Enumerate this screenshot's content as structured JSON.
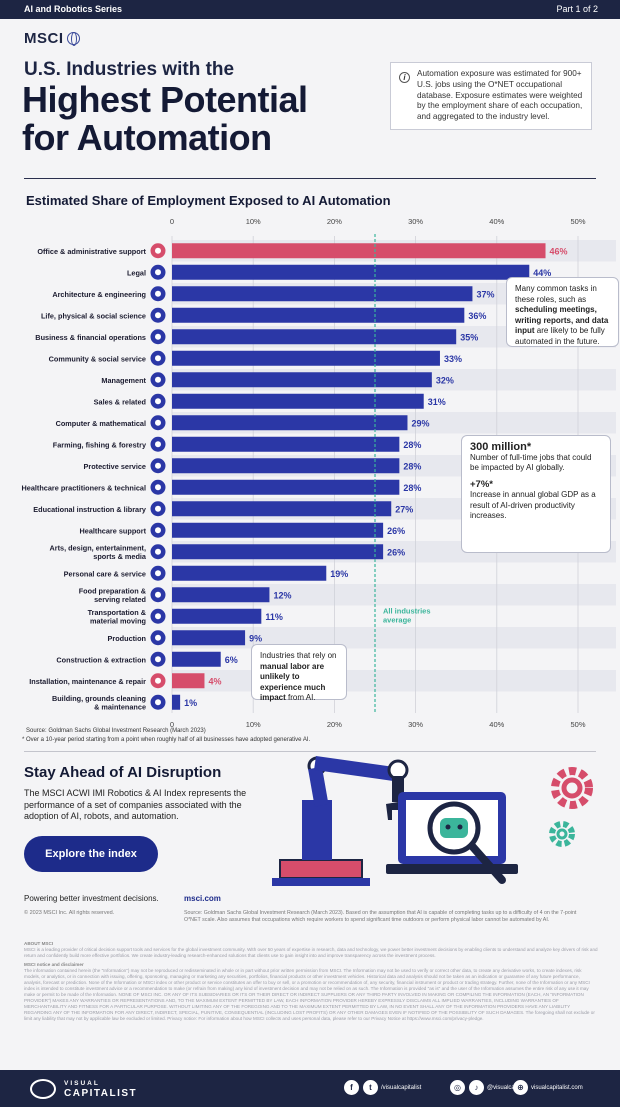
{
  "header": {
    "series": "AI and Robotics Series",
    "part": "Part 1 of 2",
    "logo": "MSCI",
    "subtitle": "U.S. Industries with the",
    "title_line1": "Highest Potential",
    "title_line2": "for Automation",
    "info_icon": "i",
    "info_text": "Automation exposure was estimated for 900+ U.S. jobs using the O*NET occupational database. Exposure estimates were weighted by the employment share of each occupation, and aggregated to the industry level."
  },
  "chart_data": {
    "type": "bar",
    "orientation": "horizontal",
    "title": "Estimated Share of Employment Exposed to AI Automation",
    "xlim": [
      0,
      50
    ],
    "xticks": [
      "0",
      "10%",
      "20%",
      "30%",
      "40%",
      "50%"
    ],
    "categories": [
      "Office & administrative support",
      "Legal",
      "Architecture & engineering",
      "Life, physical & social science",
      "Business & financial operations",
      "Community & social service",
      "Management",
      "Sales & related",
      "Computer & mathematical",
      "Farming, fishing & forestry",
      "Protective service",
      "Healthcare practitioners & technical",
      "Educational instruction & library",
      "Healthcare support",
      "Arts, design, entertainment, sports & media",
      "Personal care & service",
      "Food preparation & serving related",
      "Transportation & material moving",
      "Production",
      "Construction & extraction",
      "Installation, maintenance & repair",
      "Building, grounds cleaning & maintenance"
    ],
    "values": [
      46,
      44,
      37,
      36,
      35,
      33,
      32,
      31,
      29,
      28,
      28,
      28,
      27,
      26,
      26,
      19,
      12,
      11,
      9,
      6,
      4,
      1
    ],
    "value_labels": [
      "46%",
      "44%",
      "37%",
      "36%",
      "35%",
      "33%",
      "32%",
      "31%",
      "29%",
      "28%",
      "28%",
      "28%",
      "27%",
      "26%",
      "26%",
      "19%",
      "12%",
      "11%",
      "9%",
      "6%",
      "4%",
      "1%"
    ],
    "highlighted": [
      0,
      20
    ],
    "average_value": 25,
    "average_label": "All industries average",
    "colors": {
      "bar": "#2b37a6",
      "highlight": "#d64d6b",
      "average": "#3bb59b"
    }
  },
  "callouts": {
    "c1": {
      "p1": "Many common tasks in these roles, such as ",
      "bold": "scheduling meetings, writing reports, and data input",
      "p2": " are likely to be fully automated in the future."
    },
    "c2": {
      "big": "300 million*",
      "t1": "Number of full-time jobs that could be impacted by AI globally.",
      "mid": "+7%*",
      "t2": "Increase in annual global GDP as a result of AI-driven productivity increases."
    },
    "c3": {
      "p1": "Industries that rely on ",
      "bold": "manual labor are unlikely to experience much impact",
      "p2": " from AI."
    }
  },
  "notes": {
    "source": "Source: Goldman Sachs Global Investment Research (March 2023)",
    "footnote": "* Over a 10-year period starting from a point when roughly half of all businesses have adopted generative AI."
  },
  "promo": {
    "title": "Stay Ahead of AI Disruption",
    "body": "The MSCI ACWI IMI Robotics & AI Index represents the performance of a set of companies associated with the adoption of AI, robots, and automation.",
    "button": "Explore the index",
    "tagline": "Powering better investment decisions.",
    "url": "msci.com",
    "copyright": "© 2023 MSCI Inc. All rights reserved.",
    "source2": "Source: Goldman Sachs Global Investment Research (March 2023). Based on the assumption that AI is capable of completing tasks up to a difficulty of 4 on the 7-point O*NET scale. Also assumes that occupations which require workers to spend significant time outdoors or perform physical labor cannot be automated by AI."
  },
  "fineprint": {
    "h1": "ABOUT MSCI",
    "p1": "MSCI is a leading provider of critical decision support tools and services for the global investment community. With over 50 years of expertise in research, data and technology, we power better investment decisions by enabling clients to understand and analyze key drivers of risk and return and confidently build more effective portfolios. We create industry-leading research-enhanced solutions that clients use to gain insight into and improve transparency across the investment process.",
    "h2": "MSCI notice and disclaimer",
    "p2": "The information contained herein (the \"Information\") may not be reproduced or redisseminated in whole or in part without prior written permission from MSCI. The Information may not be used to verify or correct other data, to create any derivative works, to create indexes, risk models, or analytics, or in connection with issuing, offering, sponsoring, managing or marketing any securities, portfolios, financial products or other investment vehicles. Historical data and analysis should not be taken as an indication or guarantee of any future performance, analysis, forecast or prediction. None of the Information or MSCI index or other product or service constitutes an offer to buy or sell, or a promotion or recommendation of, any security, financial instrument or product or trading strategy. Further, none of the Information or any MSCI index is intended to constitute investment advice or a recommendation to make (or refrain from making) any kind of investment decision and may not be relied on as such. The Information is provided \"as is\" and the user of the Information assumes the entire risk of any use it may make or permit to be made of the Information. NONE OF MSCI INC. OR ANY OF ITS SUBSIDIARIES OR ITS OR THEIR DIRECT OR INDIRECT SUPPLIERS OR ANY THIRD PARTY INVOLVED IN MAKING OR COMPILING THE INFORMATION (EACH, AN \"INFORMATION PROVIDER\") MAKES ANY WARRANTIES OR REPRESENTATIONS AND, TO THE MAXIMUM EXTENT PERMITTED BY LAW, EACH INFORMATION PROVIDER HEREBY EXPRESSLY DISCLAIMS ALL IMPLIED WARRANTIES, INCLUDING WARRANTIES OF MERCHANTABILITY AND FITNESS FOR A PARTICULAR PURPOSE. WITHOUT LIMITING ANY OF THE FOREGOING AND TO THE MAXIMUM EXTENT PERMITTED BY LAW, IN NO EVENT SHALL ANY OF THE INFORMATION PROVIDERS HAVE ANY LIABILITY REGARDING ANY OF THE INFORMATION FOR ANY DIRECT, INDIRECT, SPECIAL, PUNITIVE, CONSEQUENTIAL (INCLUDING LOST PROFITS) OR ANY OTHER DAMAGES EVEN IF NOTIFIED OF THE POSSIBILITY OF SUCH DAMAGES. The foregoing shall not exclude or limit any liability that may not by applicable law be excluded or limited. Privacy notice: For information about how MSCI collects and uses personal data, please refer to our Privacy Notice at https://www.msci.com/privacy-pledge."
  },
  "footer": {
    "brand_top": "VISUAL",
    "brand_bottom": "CAPITALIST",
    "social": [
      {
        "icon": "facebook-icon",
        "glyph": "f",
        "label": ""
      },
      {
        "icon": "twitter-icon",
        "glyph": "t",
        "label": "/visualcapitalist"
      },
      {
        "icon": "instagram-icon",
        "glyph": "◎",
        "label": ""
      },
      {
        "icon": "tiktok-icon",
        "glyph": "♪",
        "label": "@visualcap"
      },
      {
        "icon": "globe-icon",
        "glyph": "⊕",
        "label": "visualcapitalist.com"
      }
    ]
  }
}
